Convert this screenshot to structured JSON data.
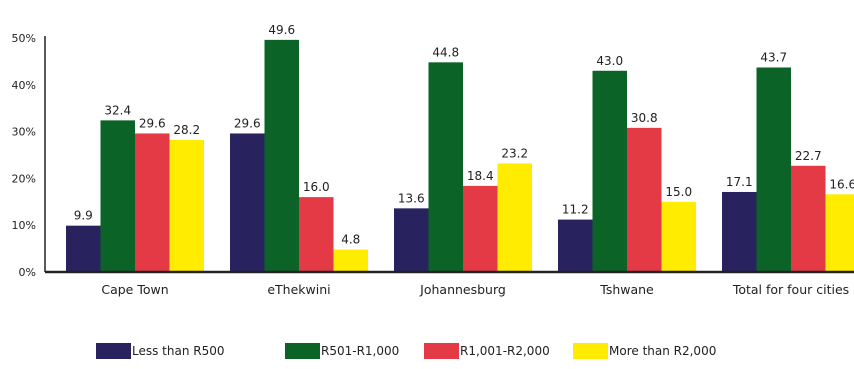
{
  "chart_data": {
    "type": "bar",
    "categories": [
      "Cape Town",
      "eThekwini",
      "Johannesburg",
      "Tshwane",
      "Total for four cities"
    ],
    "series": [
      {
        "name": "Less than R500",
        "color": "#28235e",
        "values": [
          9.9,
          29.6,
          13.6,
          11.2,
          17.1
        ]
      },
      {
        "name": "R501-R1,000",
        "color": "#0c6327",
        "values": [
          32.4,
          49.6,
          44.8,
          43.0,
          43.7
        ]
      },
      {
        "name": "R1,001-R2,000",
        "color": "#e33a45",
        "values": [
          29.6,
          16.0,
          18.4,
          30.8,
          22.7
        ]
      },
      {
        "name": "More than R2,000",
        "color": "#ffec00",
        "values": [
          28.2,
          4.8,
          23.2,
          15.0,
          16.6
        ]
      }
    ],
    "value_labels": [
      [
        "9.9",
        "29.6",
        "13.6",
        "11.2",
        "17.1"
      ],
      [
        "32.4",
        "49.6",
        "44.8",
        "43.0",
        "43.7"
      ],
      [
        "29.6",
        "16.0",
        "18.4",
        "30.8",
        "22.7"
      ],
      [
        "28.2",
        "4.8",
        "23.2",
        "15.0",
        "16.6"
      ]
    ],
    "yticks": [
      "0%",
      "10%",
      "20%",
      "30%",
      "40%",
      "50%"
    ],
    "ylim": [
      0,
      50
    ],
    "grid": false,
    "legend_position": "bottom",
    "title": "",
    "xlabel": "",
    "ylabel": ""
  }
}
